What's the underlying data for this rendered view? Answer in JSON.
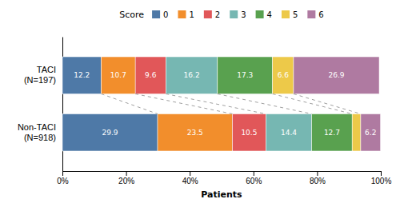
{
  "chart_data": {
    "type": "bar",
    "orientation": "horizontal",
    "stacked": true,
    "categories": [
      "TACI\n(N=197)",
      "Non-TACI\n(N=918)"
    ],
    "series": [
      {
        "name": "0",
        "values": [
          12.2,
          29.9
        ],
        "value_labels": [
          "12.2",
          "29.9"
        ]
      },
      {
        "name": "1",
        "values": [
          10.7,
          23.5
        ],
        "value_labels": [
          "10.7",
          "23.5"
        ]
      },
      {
        "name": "2",
        "values": [
          9.6,
          10.5
        ],
        "value_labels": [
          "9.6",
          "10.5"
        ]
      },
      {
        "name": "3",
        "values": [
          16.2,
          14.4
        ],
        "value_labels": [
          "16.2",
          "14.4"
        ]
      },
      {
        "name": "4",
        "values": [
          17.3,
          12.7
        ],
        "value_labels": [
          "17.3",
          "12.7"
        ]
      },
      {
        "name": "5",
        "values": [
          6.6,
          2.7
        ],
        "value_labels": [
          "6.6",
          null
        ]
      },
      {
        "name": "6",
        "values": [
          26.9,
          6.2
        ],
        "value_labels": [
          "26.9",
          "6.2"
        ]
      }
    ],
    "data_labels": true,
    "xlabel": "Patients",
    "legend_title": "Score",
    "legend": "top",
    "xlim": [
      0,
      100
    ],
    "xticks": [
      {
        "value": 0,
        "label": "0%"
      },
      {
        "value": 20,
        "label": "20%"
      },
      {
        "value": 40,
        "label": "40%"
      },
      {
        "value": 60,
        "label": "60%"
      },
      {
        "value": 80,
        "label": "80%"
      },
      {
        "value": 100,
        "label": "100%"
      }
    ]
  }
}
